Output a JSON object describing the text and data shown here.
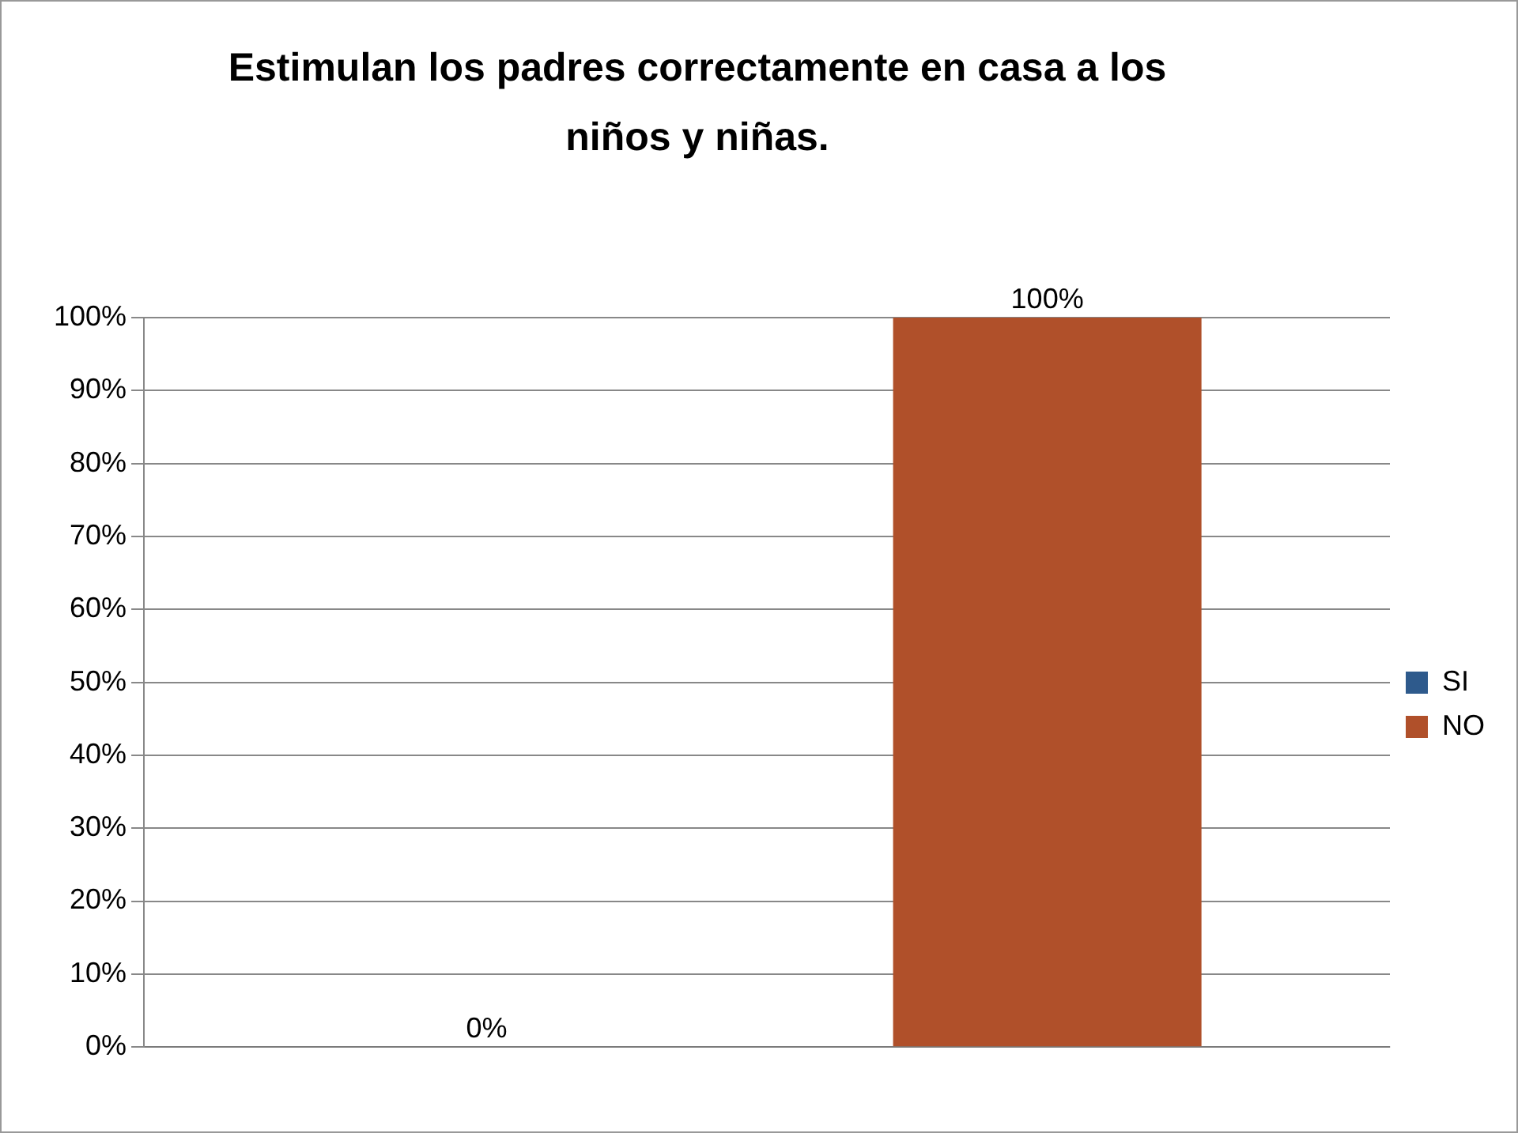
{
  "chart_data": {
    "type": "bar",
    "title": "Estimulan los padres correctamente en casa a los niños y niñas.",
    "categories": [
      null
    ],
    "series": [
      {
        "name": "SI",
        "color": "#2e5a8c",
        "values": [
          0
        ]
      },
      {
        "name": "NO",
        "color": "#b0502a",
        "values": [
          100
        ]
      }
    ],
    "value_labels": [
      "0%",
      "100%"
    ],
    "ylim": [
      0,
      100
    ],
    "yticks": [
      {
        "value": 0,
        "label": "0%"
      },
      {
        "value": 10,
        "label": "10%"
      },
      {
        "value": 20,
        "label": "20%"
      },
      {
        "value": 30,
        "label": "30%"
      },
      {
        "value": 40,
        "label": "40%"
      },
      {
        "value": 50,
        "label": "50%"
      },
      {
        "value": 60,
        "label": "60%"
      },
      {
        "value": 70,
        "label": "70%"
      },
      {
        "value": 80,
        "label": "80%"
      },
      {
        "value": 90,
        "label": "90%"
      },
      {
        "value": 100,
        "label": "100%"
      }
    ],
    "grid": "y",
    "legend": "right"
  }
}
